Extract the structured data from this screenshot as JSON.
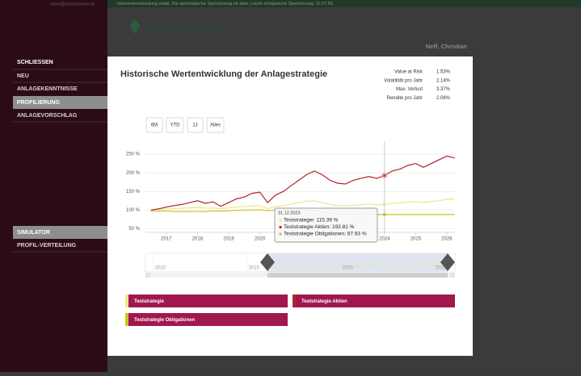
{
  "status_bar": {
    "email": "show@schlossmine.at",
    "message": "Netzwerkverbindung stabil. Die automatische Speicherung ist aktiv. Letzte erfolgreiche Speicherung: 11:27:56."
  },
  "header": {
    "logo": "SMARAGD",
    "logo_suffix": "ADVISORY",
    "user": "Neff, Christian"
  },
  "sidebar": {
    "items": [
      "SCHLIESSEN",
      "NEU",
      "ANLAGEKENNTNISSE",
      "PROFILIERUNG",
      "ANLAGEVORSCHLAG"
    ],
    "items2": [
      "SIMULATOR",
      "PROFIL-VERTEILUNG"
    ]
  },
  "panel": {
    "title": "Historische Wertentwicklung der Anlagestrategie",
    "stats": [
      {
        "label": "Value at Risk",
        "value": "1.53%"
      },
      {
        "label": "Volatilität pro Jahr",
        "value": "2.14%"
      },
      {
        "label": "Max. Verlust",
        "value": "3.37%"
      },
      {
        "label": "Rendite pro Jahr",
        "value": "2.08%"
      }
    ],
    "range_buttons": [
      "6M",
      "YTD",
      "1J",
      "Alles"
    ]
  },
  "chart_data": {
    "type": "line",
    "x": [
      2016.5,
      2016.75,
      2017,
      2017.25,
      2017.5,
      2017.75,
      2018,
      2018.25,
      2018.5,
      2018.75,
      2019,
      2019.25,
      2019.5,
      2019.75,
      2020,
      2020.25,
      2020.5,
      2020.75,
      2021,
      2021.25,
      2021.5,
      2021.75,
      2022,
      2022.25,
      2022.5,
      2022.75,
      2023,
      2023.25,
      2023.5,
      2023.75,
      2024,
      2024.25,
      2024.5,
      2024.75,
      2025,
      2025.25,
      2025.5,
      2025.75,
      2026,
      2026.25
    ],
    "series": [
      {
        "name": "Teststrategie",
        "color": "#efe58a",
        "values": [
          100,
          101,
          103,
          104,
          105,
          106,
          107,
          105,
          106,
          103,
          106,
          108,
          109,
          111,
          112,
          104,
          109,
          112,
          116,
          120,
          124,
          125,
          120,
          115,
          112,
          111,
          113,
          114,
          116,
          114,
          115.39,
          118,
          119,
          121,
          123,
          120,
          123,
          125,
          129,
          130
        ]
      },
      {
        "name": "Teststrategie Aktien",
        "color": "#b3212d",
        "values": [
          100,
          103,
          108,
          112,
          115,
          120,
          125,
          118,
          122,
          110,
          120,
          130,
          135,
          145,
          148,
          120,
          140,
          150,
          165,
          180,
          195,
          205,
          195,
          180,
          172,
          170,
          180,
          185,
          190,
          185,
          192.81,
          205,
          210,
          220,
          225,
          215,
          225,
          235,
          245,
          240
        ]
      },
      {
        "name": "Teststrategie Obligationen",
        "color": "#c9c51a",
        "values": [
          97,
          97,
          97,
          96,
          96,
          96,
          96,
          96,
          97,
          97,
          98,
          99,
          100,
          100,
          101,
          98,
          100,
          101,
          100,
          100,
          99,
          98,
          96,
          92,
          89,
          88,
          89,
          89,
          90,
          88,
          87.93,
          88,
          88,
          88,
          88,
          88,
          88,
          88,
          88,
          88
        ]
      }
    ],
    "xlim": [
      2016.33,
      2026.26
    ],
    "xticks": [
      2017,
      2018,
      2019,
      2020,
      2024,
      2025,
      2026
    ],
    "ylim": [
      40,
      285
    ],
    "yticks": [
      {
        "value": 50,
        "label": "50 %"
      },
      {
        "value": 100,
        "label": "100 %"
      },
      {
        "value": 150,
        "label": "150 %"
      },
      {
        "value": 200,
        "label": "200 %"
      },
      {
        "value": 250,
        "label": "250 %"
      }
    ],
    "grid": true,
    "tooltip": {
      "date": "31.12.2023",
      "items": [
        "Teststrategie: 115.39 %",
        "Teststrategie Aktien: 192.81 %",
        "Teststrategie Obligationen: 87.93 %"
      ]
    },
    "navigator": {
      "xlim": [
        2009.57,
        2026.13
      ],
      "xticks": [
        2010,
        2015,
        2020,
        2025
      ]
    }
  }
}
